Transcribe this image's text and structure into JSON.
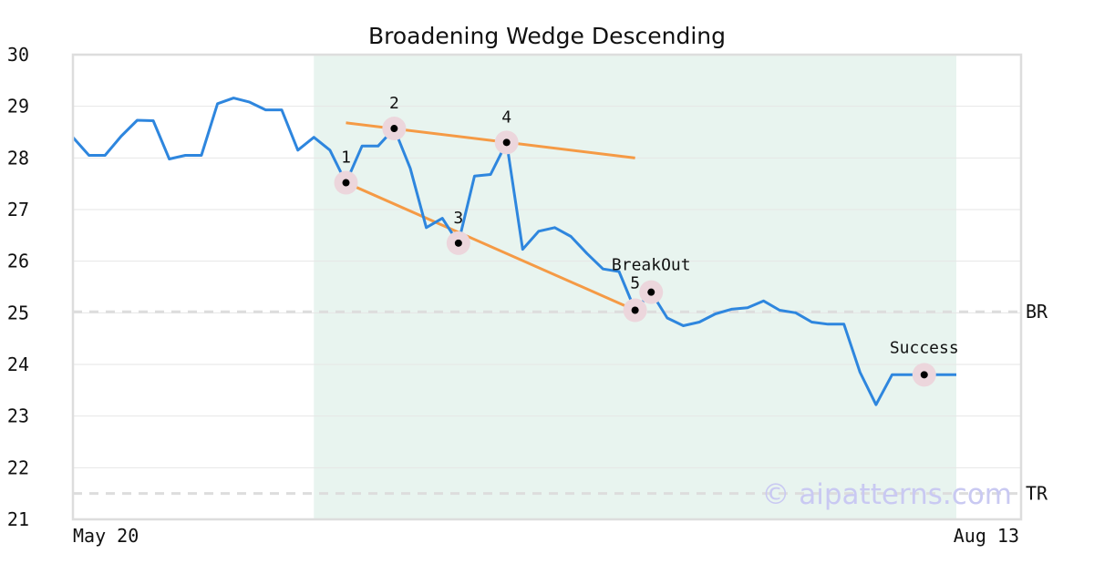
{
  "chart_data": {
    "type": "line",
    "title": "Broadening Wedge Descending",
    "xlabel": "",
    "ylabel": "",
    "ylim": [
      21,
      30
    ],
    "yticks": [
      21,
      22,
      23,
      24,
      25,
      26,
      27,
      28,
      29,
      30
    ],
    "x_tick_labels": [
      "May 20",
      "Aug 13"
    ],
    "grid": true,
    "colors": {
      "price": "#2e86de",
      "trendline": "#f59a45",
      "highlight": "#e8f4ef",
      "marker_halo": "#ecd6dc",
      "reference": "#dddddd",
      "watermark": "#c9c9f2"
    },
    "series": [
      {
        "values": [
          28.4,
          28.05,
          28.05,
          28.42,
          28.73,
          28.72,
          27.98,
          28.05,
          28.05,
          29.05,
          29.16,
          29.08,
          28.93,
          28.93,
          28.15,
          28.4,
          28.15,
          27.52,
          28.23,
          28.23,
          28.57,
          27.8,
          26.65,
          26.83,
          26.35,
          27.65,
          27.68,
          28.3,
          26.23,
          26.58,
          26.65,
          26.48,
          26.15,
          25.85,
          25.8,
          25.05,
          25.4,
          24.9,
          24.75,
          24.82,
          24.98,
          25.07,
          25.1,
          25.23,
          25.05,
          25.0,
          24.82,
          24.78,
          24.78,
          23.85,
          23.22,
          23.8,
          23.8,
          23.8,
          23.8,
          23.8
        ]
      }
    ],
    "highlight_range": [
      15,
      55
    ],
    "trendlines": [
      {
        "x": [
          17,
          35
        ],
        "y": [
          27.52,
          25.05
        ]
      },
      {
        "x": [
          17,
          35
        ],
        "y": [
          28.68,
          28.0
        ]
      }
    ],
    "points": [
      {
        "label": "1",
        "x": 17,
        "y": 27.52
      },
      {
        "label": "2",
        "x": 20,
        "y": 28.57
      },
      {
        "label": "3",
        "x": 24,
        "y": 26.35
      },
      {
        "label": "4",
        "x": 27,
        "y": 28.3
      },
      {
        "label": "5",
        "x": 35,
        "y": 25.05
      },
      {
        "label": "BreakOut",
        "x": 36,
        "y": 25.4
      },
      {
        "label": "Success",
        "x": 53,
        "y": 23.8
      }
    ],
    "reference_lines": [
      {
        "label": "BR",
        "y": 25.02
      },
      {
        "label": "TR",
        "y": 21.5
      }
    ],
    "watermark": "© aipatterns.com"
  }
}
